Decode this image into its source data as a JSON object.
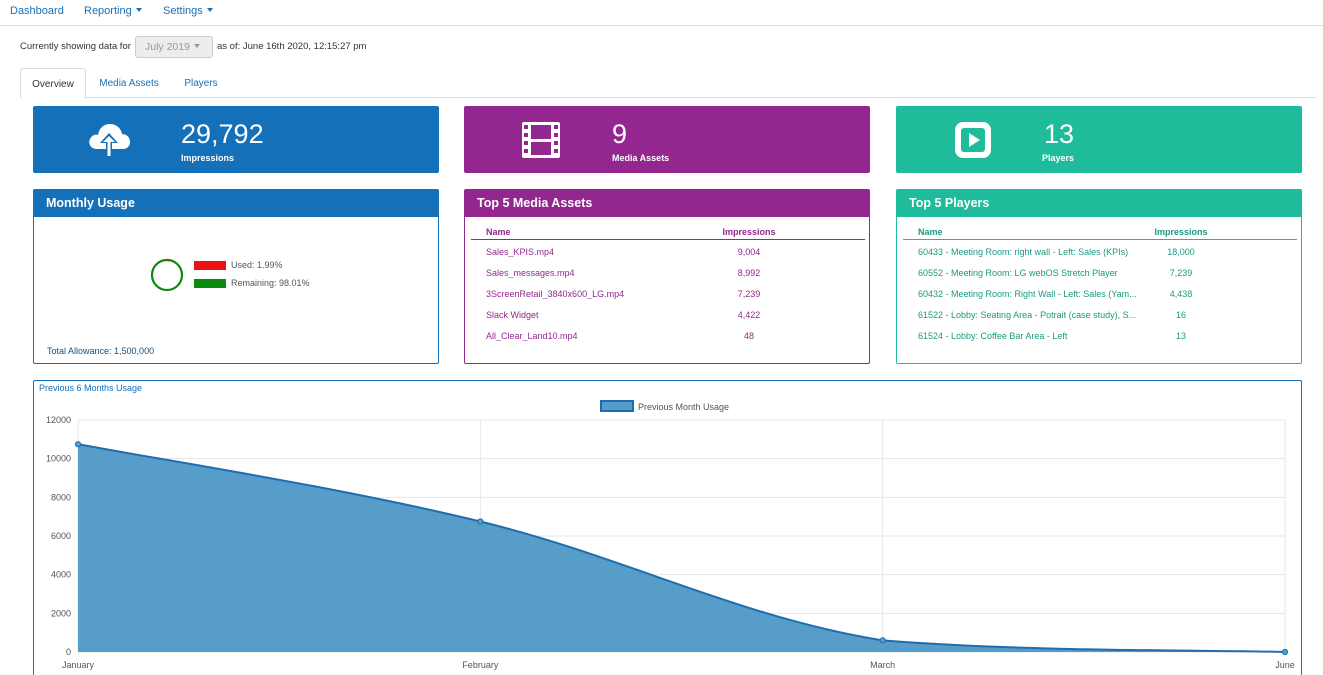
{
  "nav": {
    "dashboard": "Dashboard",
    "reporting": "Reporting",
    "settings": "Settings"
  },
  "databar": {
    "prefix": "Currently showing data for",
    "month": "July 2019",
    "asof": "as of: June 16th 2020, 12:15:27 pm"
  },
  "tabs": [
    "Overview",
    "Media Assets",
    "Players"
  ],
  "stats": {
    "impressions": {
      "value": "29,792",
      "label": "Impressions",
      "icon": "cloud-upload-icon"
    },
    "media": {
      "value": "9",
      "label": "Media Assets",
      "icon": "film-icon"
    },
    "players": {
      "value": "13",
      "label": "Players",
      "icon": "play-square-icon"
    }
  },
  "monthly": {
    "title": "Monthly Usage",
    "used": "Used: 1.99%",
    "remaining": "Remaining: 98.01%",
    "used_fraction": 0.0199,
    "allowance": "Total Allowance: 1,500,000"
  },
  "top_media": {
    "title": "Top 5 Media Assets",
    "col_name": "Name",
    "col_imp": "Impressions",
    "rows": [
      {
        "name": "Sales_KPIS.mp4",
        "imp": "9,004"
      },
      {
        "name": "Sales_messages.mp4",
        "imp": "8,992"
      },
      {
        "name": "3ScreenRetail_3840x600_LG.mp4",
        "imp": "7,239"
      },
      {
        "name": "Slack Widget",
        "imp": "4,422"
      },
      {
        "name": "All_Clear_Land10.mp4",
        "imp": "48"
      }
    ]
  },
  "top_players": {
    "title": "Top 5 Players",
    "col_name": "Name",
    "col_imp": "Impressions",
    "rows": [
      {
        "name": "60433 - Meeting Room: right wall - Left: Sales (KPIs)",
        "imp": "18,000"
      },
      {
        "name": "60552 - Meeting Room: LG webOS Stretch Player",
        "imp": "7,239"
      },
      {
        "name": "60432 - Meeting Room: Right Wall - Left: Sales (Yam...",
        "imp": "4,438"
      },
      {
        "name": "61522 - Lobby: Seating Area - Potrait (case study), S...",
        "imp": "16"
      },
      {
        "name": "61524 - Lobby: Coffee Bar Area - Left",
        "imp": "13"
      }
    ]
  },
  "colors": {
    "blue": "#1470b9",
    "purple": "#93278f",
    "teal": "#1fbc9c",
    "area_fill": "#579dca",
    "area_line": "#1f6db0"
  },
  "chart_data": {
    "type": "area",
    "title": "Previous 6 Months Usage",
    "categories": [
      "January",
      "February",
      "March",
      "June"
    ],
    "series": [
      {
        "name": "Previous Month Usage",
        "values": [
          10750,
          6750,
          600,
          0
        ]
      }
    ],
    "ylim": [
      0,
      12000
    ],
    "yticks": [
      0,
      2000,
      4000,
      6000,
      8000,
      10000,
      12000
    ],
    "grid": true,
    "legend": "top-center"
  }
}
